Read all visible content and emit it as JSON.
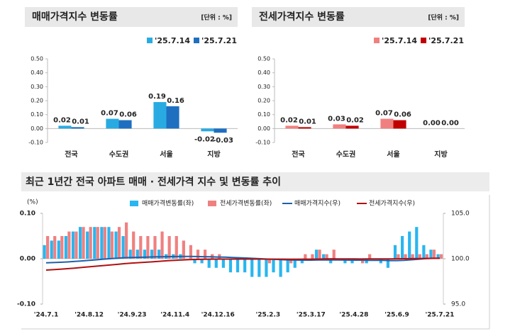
{
  "chart_data": [
    {
      "type": "bar",
      "title": "매매가격지수 변동률",
      "unit": "[단위 : %]",
      "categories": [
        "전국",
        "수도권",
        "서울",
        "지방"
      ],
      "series": [
        {
          "name": "'25.7.14",
          "color": "#29abe2",
          "values": [
            0.02,
            0.07,
            0.19,
            -0.02
          ],
          "value_labels": [
            "0.02",
            "0.07",
            "0.19",
            "-0.02"
          ]
        },
        {
          "name": "'25.7.21",
          "color": "#1f6fc0",
          "values": [
            0.01,
            0.06,
            0.16,
            -0.03
          ],
          "value_labels": [
            "0.01",
            "0.06",
            "0.16",
            "-0.03"
          ]
        }
      ],
      "ylim": [
        -0.1,
        0.5
      ],
      "yticks": [
        {
          "value": 0.5,
          "label": "0.50"
        },
        {
          "value": 0.4,
          "label": "0.40"
        },
        {
          "value": 0.3,
          "label": "0.30"
        },
        {
          "value": 0.2,
          "label": "0.20"
        },
        {
          "value": 0.1,
          "label": "0.10"
        },
        {
          "value": 0,
          "label": "0.00"
        },
        {
          "value": -0.1,
          "label": "-0.10"
        }
      ]
    },
    {
      "type": "bar",
      "title": "전세가격지수 변동률",
      "unit": "[단위 : %]",
      "categories": [
        "전국",
        "수도권",
        "서울",
        "지방"
      ],
      "series": [
        {
          "name": "'25.7.14",
          "color": "#f08080",
          "values": [
            0.02,
            0.03,
            0.07,
            0
          ],
          "value_labels": [
            "0.02",
            "0.03",
            "0.07",
            "0.00"
          ]
        },
        {
          "name": "'25.7.21",
          "color": "#c00000",
          "values": [
            0.01,
            0.02,
            0.06,
            0
          ],
          "value_labels": [
            "0.01",
            "0.02",
            "0.06",
            "0.00"
          ]
        }
      ],
      "ylim": [
        -0.1,
        0.5
      ],
      "yticks": [
        {
          "value": 0.5,
          "label": "0.50"
        },
        {
          "value": 0.4,
          "label": "0.40"
        },
        {
          "value": 0.3,
          "label": "0.30"
        },
        {
          "value": 0.2,
          "label": "0.20"
        },
        {
          "value": 0.1,
          "label": "0.10"
        },
        {
          "value": 0,
          "label": "0.00"
        },
        {
          "value": -0.1,
          "label": "-0.10"
        }
      ]
    },
    {
      "type": "combo",
      "title": "최근 1년간 전국 아파트 매매 · 전세가격 지수 및 변동률 추이",
      "ylabel": "(%)",
      "categories": [
        "'24.7.1",
        null,
        null,
        null,
        null,
        null,
        "'24.8.12",
        null,
        null,
        null,
        null,
        null,
        "'24.9.23",
        null,
        null,
        null,
        null,
        null,
        "'24.11.4",
        null,
        null,
        null,
        null,
        null,
        "'24.12.16",
        null,
        null,
        null,
        null,
        null,
        null,
        "'25.2.3",
        null,
        null,
        null,
        null,
        null,
        "'25.3.17",
        null,
        null,
        null,
        null,
        null,
        "'25.4.28",
        null,
        null,
        null,
        null,
        null,
        "'25.6.9",
        null,
        null,
        null,
        null,
        null,
        "'25.7.21"
      ],
      "series": [
        {
          "name": "매매가격변동률(좌)",
          "kind": "bar",
          "color": "#29b6f0",
          "values": [
            0.03,
            0.04,
            0.04,
            0.05,
            0.06,
            0.07,
            0.06,
            0.07,
            0.07,
            0.07,
            0.06,
            0.05,
            0.02,
            0.02,
            0.02,
            0.02,
            0.02,
            0.01,
            0.01,
            0.01,
            0,
            -0.01,
            -0.01,
            -0.02,
            -0.02,
            -0.02,
            -0.03,
            -0.03,
            -0.03,
            -0.04,
            -0.04,
            -0.04,
            -0.03,
            -0.04,
            -0.03,
            -0.02,
            -0.01,
            0,
            0.02,
            0.01,
            -0.01,
            0,
            -0.01,
            -0.01,
            0,
            -0.01,
            0,
            -0.01,
            -0.02,
            0.03,
            0.05,
            0.06,
            0.07,
            0.03,
            0.02,
            0.01
          ]
        },
        {
          "name": "전세가격변동률(좌)",
          "kind": "bar",
          "color": "#f08080",
          "values": [
            0.05,
            0.05,
            0.05,
            0.06,
            0.06,
            0.07,
            0.07,
            0.07,
            0.07,
            0.06,
            0.07,
            0.08,
            0.06,
            0.05,
            0.05,
            0.05,
            0.06,
            0.05,
            0.05,
            0.04,
            0.03,
            0.02,
            0.02,
            0.01,
            0.01,
            0,
            0,
            0,
            0,
            0,
            0,
            -0.01,
            0,
            0,
            -0.01,
            0,
            0.01,
            0.01,
            0.02,
            0.01,
            0.02,
            0,
            0,
            0,
            -0.01,
            0.01,
            0,
            0,
            0,
            0.01,
            0.01,
            0.01,
            0.01,
            0.01,
            0.02,
            0.01
          ]
        },
        {
          "name": "매매가격지수(우)",
          "kind": "line",
          "axis": "y2",
          "color": "#1f5fa8",
          "values": [
            99.55,
            99.58,
            99.61,
            99.65,
            99.7,
            99.76,
            99.82,
            99.88,
            99.95,
            100.01,
            100.06,
            100.12,
            100.14,
            100.16,
            100.18,
            100.2,
            100.22,
            100.23,
            100.24,
            100.25,
            100.25,
            100.24,
            100.23,
            100.21,
            100.19,
            100.17,
            100.14,
            100.11,
            100.08,
            100.04,
            100,
            99.96,
            99.93,
            99.89,
            99.86,
            99.85,
            99.84,
            99.84,
            99.86,
            99.87,
            99.86,
            99.86,
            99.85,
            99.84,
            99.84,
            99.83,
            99.83,
            99.82,
            99.8,
            99.8,
            99.83,
            99.88,
            99.94,
            100.01,
            100.04,
            100.05
          ]
        },
        {
          "name": "전세가격지수(우)",
          "kind": "line",
          "axis": "y2",
          "color": "#b01010",
          "values": [
            98.75,
            98.8,
            98.85,
            98.91,
            98.97,
            99.04,
            99.11,
            99.18,
            99.25,
            99.31,
            99.38,
            99.46,
            99.52,
            99.57,
            99.62,
            99.67,
            99.73,
            99.78,
            99.83,
            99.87,
            99.9,
            99.92,
            99.94,
            99.95,
            99.96,
            99.96,
            99.96,
            99.96,
            99.96,
            99.96,
            99.96,
            99.95,
            99.95,
            99.95,
            99.94,
            99.94,
            99.95,
            99.95,
            99.96,
            99.98,
            99.99,
            99.98,
            99.98,
            99.98,
            99.97,
            99.98,
            99.98,
            99.98,
            99.98,
            99.99,
            100,
            100.01,
            100.02,
            100.03,
            100.05,
            100.06
          ]
        }
      ],
      "ylim": [
        -0.1,
        0.1
      ],
      "yticks": [
        {
          "value": 0.1,
          "label": "0.10"
        },
        {
          "value": 0,
          "label": "0.00"
        },
        {
          "value": -0.1,
          "label": "-0.10"
        }
      ],
      "y2lim": [
        95,
        105
      ],
      "y2ticks": [
        {
          "value": 105,
          "label": "105.0"
        },
        {
          "value": 100,
          "label": "100.0"
        },
        {
          "value": 95,
          "label": "95.0"
        }
      ]
    }
  ]
}
